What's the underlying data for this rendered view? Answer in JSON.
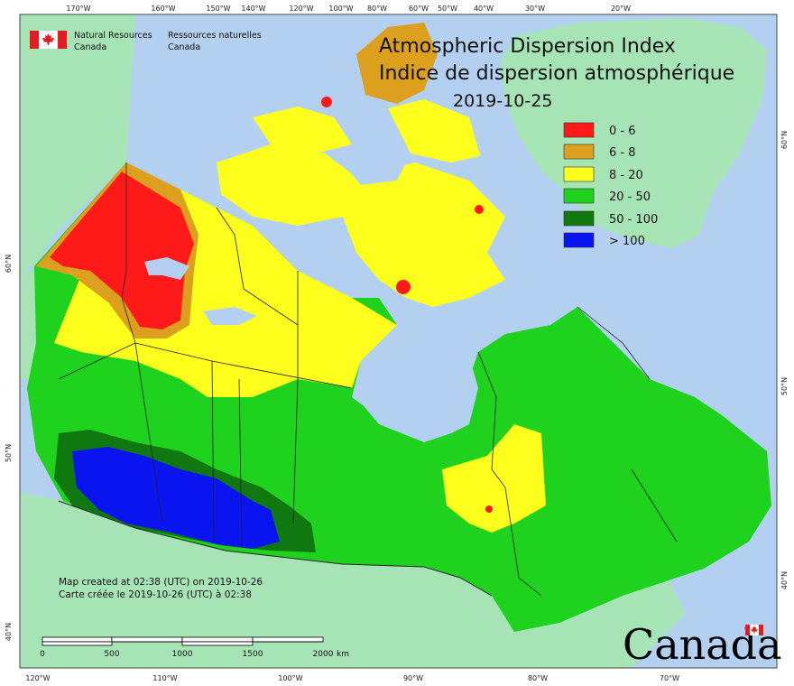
{
  "map": {
    "title_en": "Atmospheric Dispersion Index",
    "title_fr": "Indice de dispersion atmosphérique",
    "date": "2019-10-25",
    "org": {
      "en_line1": "Natural Resources",
      "en_line2": "Canada",
      "fr_line1": "Ressources naturelles",
      "fr_line2": "Canada"
    },
    "wordmark": "Canada",
    "created_en": "Map created at 02:38 (UTC) on 2019-10-26",
    "created_fr": "Carte créée le 2019-10-26 (UTC) à 02:38",
    "legend": [
      {
        "label": "0 - 6",
        "color": "#ff1a1a"
      },
      {
        "label": "6 - 8",
        "color": "#dca01e"
      },
      {
        "label": "8 - 20",
        "color": "#ffff1e"
      },
      {
        "label": "20 - 50",
        "color": "#1ed21e"
      },
      {
        "label": "50 - 100",
        "color": "#0f780f"
      },
      {
        "label": "> 100",
        "color": "#0a14f0"
      }
    ],
    "colors": {
      "water": "#b4d0f0",
      "land_other": "#a6e4b6",
      "border": "#222222"
    },
    "top_ticks": [
      "170°W",
      "160°W",
      "150°W",
      "140°W",
      "120°W",
      "100°W",
      "80°W",
      "60°W",
      "50°W",
      "40°W",
      "30°W",
      "20°W"
    ],
    "bottom_ticks": [
      "120°W",
      "110°W",
      "100°W",
      "90°W",
      "80°W",
      "70°W"
    ],
    "left_ticks": [
      "60°N",
      "50°N",
      "40°N"
    ],
    "right_ticks": [
      "60°N",
      "50°N",
      "40°N"
    ],
    "scale_labels": [
      "0",
      "500",
      "1000",
      "1500",
      "2000",
      "km"
    ]
  }
}
